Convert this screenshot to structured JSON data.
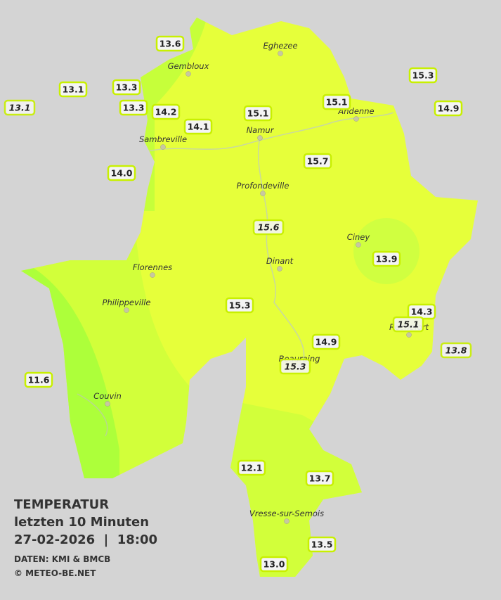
{
  "legend": {
    "title": "TEMPERATUR",
    "subtitle": "letzten 10 Minuten",
    "datetime": "27-02-2026  |  18:00",
    "source": "DATEN: KMI & BMCB",
    "copyright": "© METEO-BE.NET"
  },
  "cities": [
    "Eghezee",
    "Gembloux",
    "Andenne",
    "Namur",
    "Sambreville",
    "Profondeville",
    "Ciney",
    "Dinant",
    "Florennes",
    "Philippeville",
    "Rochefort",
    "Beauraing",
    "Couvin",
    "Vresse-sur-Semois"
  ],
  "stations": [
    {
      "value": "13.6"
    },
    {
      "value": "13.1"
    },
    {
      "value": "13.1",
      "italic": true
    },
    {
      "value": "13.3"
    },
    {
      "value": "13.3"
    },
    {
      "value": "14.2"
    },
    {
      "value": "14.1"
    },
    {
      "value": "15.1"
    },
    {
      "value": "15.1"
    },
    {
      "value": "15.3"
    },
    {
      "value": "14.9"
    },
    {
      "value": "14.0"
    },
    {
      "value": "15.7"
    },
    {
      "value": "15.6",
      "italic": true
    },
    {
      "value": "13.9"
    },
    {
      "value": "15.3"
    },
    {
      "value": "14.3"
    },
    {
      "value": "15.1",
      "italic": true
    },
    {
      "value": "13.8",
      "italic": true
    },
    {
      "value": "14.9"
    },
    {
      "value": "15.3",
      "italic": true
    },
    {
      "value": "11.6"
    },
    {
      "value": "12.1"
    },
    {
      "value": "13.7"
    },
    {
      "value": "13.5"
    },
    {
      "value": "13.0"
    }
  ]
}
